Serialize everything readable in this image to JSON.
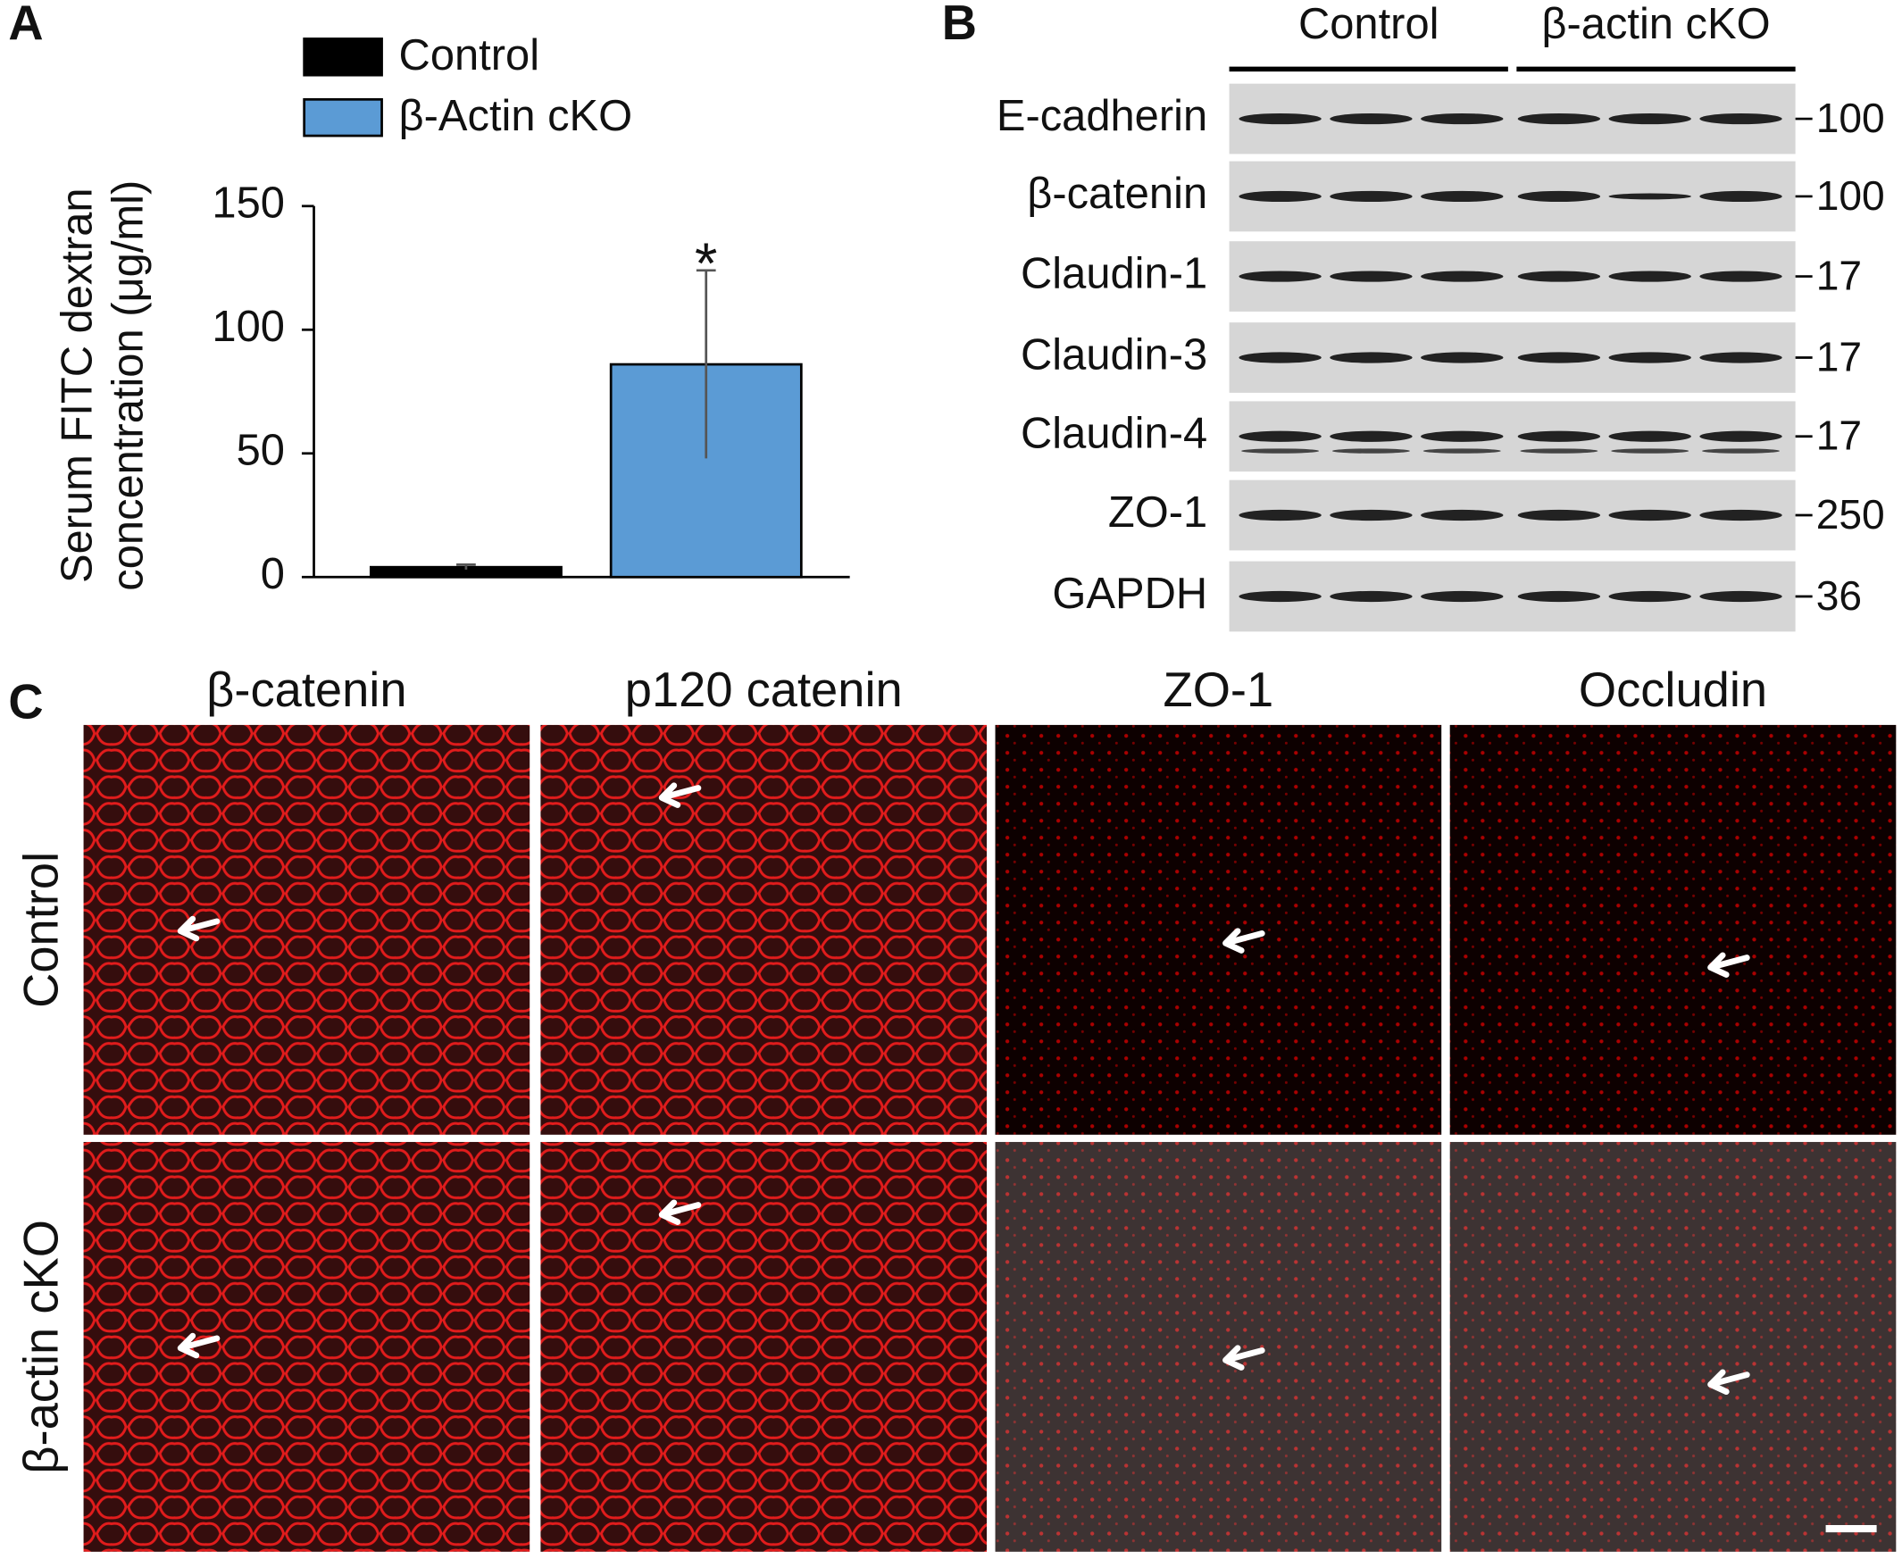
{
  "chart_data": {
    "type": "bar",
    "panel": "A",
    "y_label": [
      "Serum FITC dextran",
      "concentration (μg/ml)"
    ],
    "series": [
      {
        "name": "Control",
        "color": "#000000",
        "values": [
          4
        ],
        "errors": [
          1
        ]
      },
      {
        "name": "β-Actin cKO",
        "color": "#5b9bd5",
        "values": [
          86
        ],
        "errors": [
          38
        ]
      }
    ],
    "annotation": "*",
    "ylim": [
      0,
      150
    ],
    "yticks": [
      0,
      50,
      100,
      150
    ],
    "grid": false
  },
  "blot": {
    "panel": "B",
    "groups": [
      "Control",
      "β-actin cKO"
    ],
    "rows": [
      {
        "label": "E-cadherin",
        "marker": "100"
      },
      {
        "label": "β-catenin",
        "marker": "100"
      },
      {
        "label": "Claudin-1",
        "marker": "17"
      },
      {
        "label": "Claudin-3",
        "marker": "17"
      },
      {
        "label": "Claudin-4",
        "marker": "17"
      },
      {
        "label": "ZO-1",
        "marker": "250"
      },
      {
        "label": "GAPDH",
        "marker": "36"
      }
    ]
  },
  "images": {
    "panel": "C",
    "columns": [
      "β-catenin",
      "p120 catenin",
      "ZO-1",
      "Occludin"
    ],
    "rows": [
      "Control",
      "β-actin cKO"
    ]
  }
}
